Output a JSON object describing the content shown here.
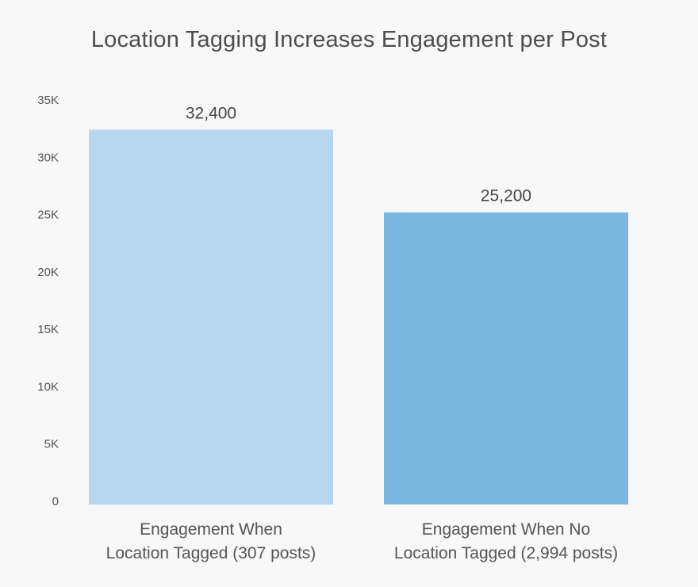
{
  "chart_data": {
    "type": "bar",
    "title": "Location Tagging Increases Engagement per Post",
    "categories": [
      [
        "Engagement When",
        "Location Tagged (307 posts)"
      ],
      [
        "Engagement When No",
        "Location Tagged (2,994 posts)"
      ]
    ],
    "values": [
      32400,
      25200
    ],
    "value_labels": [
      "32,400",
      "25,200"
    ],
    "bar_colors": [
      "#b8d6ee",
      "#7ab8e0"
    ],
    "ylim": [
      0,
      35000
    ],
    "yticks": [
      0,
      5000,
      10000,
      15000,
      20000,
      25000,
      30000,
      35000
    ],
    "ytick_labels": [
      "0",
      "5K",
      "10K",
      "15K",
      "20K",
      "25K",
      "30K",
      "35K"
    ],
    "xlabel": "",
    "ylabel": "",
    "grid": false,
    "legend": "none"
  }
}
